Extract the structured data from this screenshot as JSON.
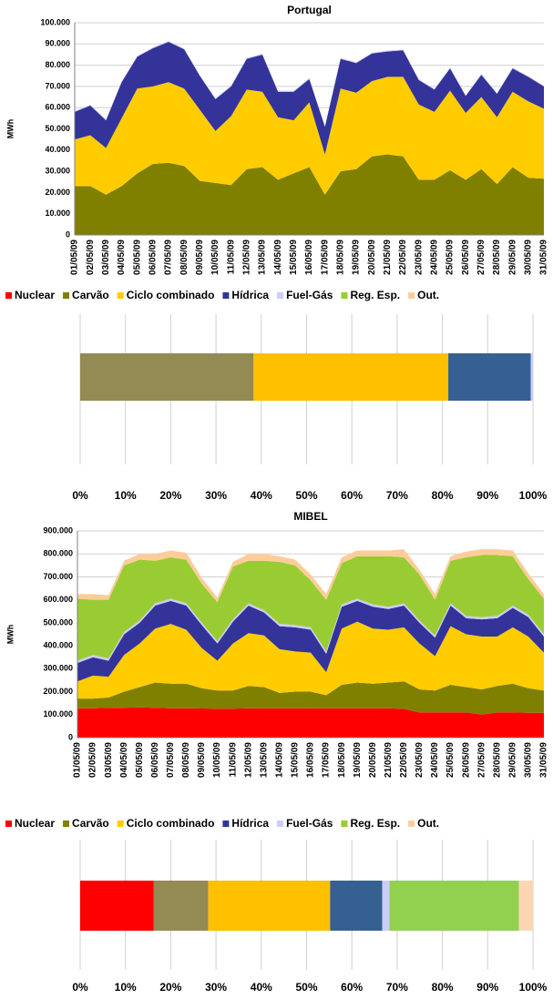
{
  "chart_data": [
    {
      "type": "area",
      "stacked": true,
      "title": "Portugal",
      "ylabel": "MWh",
      "categories": [
        "01/05/09",
        "02/05/09",
        "03/05/09",
        "04/05/09",
        "05/05/09",
        "06/05/09",
        "07/05/09",
        "08/05/09",
        "09/05/09",
        "10/05/09",
        "11/05/09",
        "12/05/09",
        "13/05/09",
        "14/05/09",
        "15/05/09",
        "16/05/09",
        "17/05/09",
        "18/05/09",
        "19/05/09",
        "20/05/09",
        "21/05/09",
        "22/05/09",
        "23/05/09",
        "24/05/09",
        "25/05/09",
        "26/05/09",
        "27/05/09",
        "28/05/09",
        "29/05/09",
        "30/05/09",
        "31/05/09"
      ],
      "ylim": [
        0,
        100000
      ],
      "yticks": [
        0,
        {
          "value": 10000,
          "label": "10.000"
        },
        {
          "value": 20000,
          "label": "20.000"
        },
        {
          "value": 30000,
          "label": "30.000"
        },
        {
          "value": 40000,
          "label": "40.000"
        },
        {
          "value": 50000,
          "label": "50.000"
        },
        {
          "value": 60000,
          "label": "60.000"
        },
        {
          "value": 70000,
          "label": "70.000"
        },
        {
          "value": 80000,
          "label": "80.000"
        },
        {
          "value": 90000,
          "label": "90.000"
        },
        {
          "value": 100000,
          "label": "100.000"
        }
      ],
      "grid": true,
      "series": [
        {
          "name": "Nuclear",
          "color": "#ff0000",
          "values": [
            0,
            0,
            0,
            0,
            0,
            0,
            0,
            0,
            0,
            0,
            0,
            0,
            0,
            0,
            0,
            0,
            0,
            0,
            0,
            0,
            0,
            0,
            0,
            0,
            0,
            0,
            0,
            0,
            0,
            0,
            0
          ]
        },
        {
          "name": "Carvão",
          "color": "#808000",
          "values": [
            23000,
            23000,
            19000,
            23000,
            29000,
            33500,
            34000,
            32500,
            25500,
            24500,
            23500,
            31000,
            32000,
            26000,
            29000,
            32000,
            19000,
            30000,
            31000,
            37000,
            38000,
            37000,
            26000,
            26000,
            30500,
            26000,
            31000,
            24000,
            32000,
            27000,
            26500
          ]
        },
        {
          "name": "Ciclo combinado",
          "color": "#ffcc00",
          "values": [
            22000,
            24000,
            22000,
            32000,
            40000,
            36500,
            38000,
            36500,
            33500,
            24500,
            32500,
            37500,
            35500,
            29500,
            25000,
            30500,
            19000,
            39000,
            36000,
            35500,
            36500,
            37500,
            35500,
            32000,
            37500,
            31500,
            34000,
            31500,
            35500,
            36000,
            33000
          ]
        },
        {
          "name": "Hídrica",
          "color": "#333399",
          "values": [
            13000,
            14000,
            13000,
            17000,
            15000,
            18000,
            19000,
            18500,
            16000,
            15000,
            14000,
            14500,
            17500,
            12000,
            13500,
            11000,
            13000,
            14000,
            14000,
            13000,
            12000,
            12500,
            11500,
            10500,
            10500,
            8000,
            10500,
            11000,
            11000,
            11500,
            10500
          ]
        },
        {
          "name": "Fuel-Gás",
          "color": "#ccccff",
          "values": [
            400,
            400,
            400,
            400,
            400,
            400,
            400,
            400,
            400,
            400,
            400,
            400,
            400,
            400,
            400,
            400,
            400,
            400,
            400,
            400,
            400,
            400,
            400,
            400,
            400,
            400,
            400,
            400,
            400,
            400,
            400
          ]
        },
        {
          "name": "Reg. Esp.",
          "color": "#99cc33",
          "values": [
            0,
            0,
            0,
            0,
            0,
            0,
            0,
            0,
            0,
            0,
            0,
            0,
            0,
            0,
            0,
            0,
            0,
            0,
            0,
            0,
            0,
            0,
            0,
            0,
            0,
            0,
            0,
            0,
            0,
            0,
            0
          ]
        },
        {
          "name": "Out.",
          "color": "#ffcc99",
          "values": [
            0,
            0,
            0,
            0,
            0,
            0,
            0,
            0,
            0,
            0,
            0,
            0,
            0,
            0,
            0,
            0,
            0,
            0,
            0,
            0,
            0,
            0,
            0,
            0,
            0,
            0,
            0,
            0,
            0,
            0,
            0
          ]
        }
      ]
    },
    {
      "type": "stacked-bar-100",
      "categories": [
        null
      ],
      "xlim": [
        0,
        100
      ],
      "xticks": [
        {
          "value": 0,
          "label": "0%"
        },
        {
          "value": 10,
          "label": "10%"
        },
        {
          "value": 20,
          "label": "20%"
        },
        {
          "value": 30,
          "label": "30%"
        },
        {
          "value": 40,
          "label": "40%"
        },
        {
          "value": 50,
          "label": "50%"
        },
        {
          "value": 60,
          "label": "60%"
        },
        {
          "value": 70,
          "label": "70%"
        },
        {
          "value": 80,
          "label": "80%"
        },
        {
          "value": 90,
          "label": "90%"
        },
        {
          "value": 100,
          "label": "100%"
        }
      ],
      "grid": true,
      "series": [
        {
          "color": "#ff0000",
          "values": [
            0
          ]
        },
        {
          "color": "#948a54",
          "values": [
            38.3
          ]
        },
        {
          "color": "#ffc000",
          "values": [
            43
          ]
        },
        {
          "color": "#366092",
          "values": [
            18.2
          ]
        },
        {
          "color": "#ccccff",
          "values": [
            0.5
          ]
        },
        {
          "color": "#92d050",
          "values": [
            0
          ]
        },
        {
          "color": "#fcd5b4",
          "values": [
            0
          ]
        }
      ]
    },
    {
      "type": "area",
      "stacked": true,
      "title": "MIBEL",
      "ylabel": "MWh",
      "categories": [
        "01/05/09",
        "02/05/09",
        "03/05/09",
        "04/05/09",
        "05/05/09",
        "06/05/09",
        "07/05/09",
        "08/05/09",
        "09/05/09",
        "10/05/09",
        "11/05/09",
        "12/05/09",
        "13/05/09",
        "14/05/09",
        "15/05/09",
        "16/05/09",
        "17/05/09",
        "18/05/09",
        "19/05/09",
        "20/05/09",
        "21/05/09",
        "22/05/09",
        "23/05/09",
        "24/05/09",
        "25/05/09",
        "26/05/09",
        "27/05/09",
        "28/05/09",
        "29/05/09",
        "30/05/09",
        "31/05/09"
      ],
      "ylim": [
        0,
        900000
      ],
      "yticks": [
        0,
        {
          "value": 100000,
          "label": "100.000"
        },
        {
          "value": 200000,
          "label": "200.000"
        },
        {
          "value": 300000,
          "label": "300.000"
        },
        {
          "value": 400000,
          "label": "400.000"
        },
        {
          "value": 500000,
          "label": "500.000"
        },
        {
          "value": 600000,
          "label": "600.000"
        },
        {
          "value": 700000,
          "label": "700.000"
        },
        {
          "value": 800000,
          "label": "800.000"
        },
        {
          "value": 900000,
          "label": "900.000"
        }
      ],
      "grid": true,
      "series": [
        {
          "name": "Nuclear",
          "color": "#ff0000",
          "values": [
            128000,
            128000,
            130000,
            130000,
            132000,
            130000,
            128000,
            128000,
            127000,
            126000,
            126000,
            128000,
            128000,
            128000,
            128000,
            128000,
            128000,
            128000,
            128000,
            128000,
            128000,
            125000,
            110000,
            110000,
            110000,
            110000,
            100000,
            110000,
            110000,
            108000,
            108000
          ]
        },
        {
          "name": "Carvão",
          "color": "#808000",
          "values": [
            42000,
            42000,
            45000,
            70000,
            88000,
            110000,
            107000,
            107000,
            88000,
            79000,
            79000,
            97000,
            92000,
            67000,
            72000,
            72000,
            57000,
            102000,
            112000,
            107000,
            112000,
            120000,
            100000,
            95000,
            120000,
            110000,
            110000,
            115000,
            125000,
            107000,
            97000
          ]
        },
        {
          "name": "Ciclo combinado",
          "color": "#ffcc00",
          "values": [
            75000,
            100000,
            90000,
            160000,
            190000,
            235000,
            260000,
            235000,
            175000,
            130000,
            205000,
            230000,
            225000,
            190000,
            175000,
            170000,
            100000,
            245000,
            265000,
            240000,
            230000,
            235000,
            200000,
            150000,
            255000,
            230000,
            230000,
            215000,
            245000,
            225000,
            165000
          ]
        },
        {
          "name": "Hídrica",
          "color": "#333399",
          "values": [
            80000,
            80000,
            70000,
            90000,
            90000,
            100000,
            100000,
            105000,
            100000,
            75000,
            95000,
            120000,
            100000,
            100000,
            105000,
            100000,
            80000,
            95000,
            90000,
            95000,
            90000,
            95000,
            90000,
            80000,
            90000,
            70000,
            75000,
            80000,
            85000,
            85000,
            70000
          ]
        },
        {
          "name": "Fuel-Gás",
          "color": "#ccccff",
          "values": [
            10000,
            10000,
            10000,
            10000,
            10000,
            10000,
            10000,
            10000,
            10000,
            10000,
            10000,
            10000,
            10000,
            10000,
            10000,
            10000,
            10000,
            10000,
            10000,
            10000,
            10000,
            10000,
            10000,
            10000,
            10000,
            10000,
            10000,
            10000,
            10000,
            10000,
            10000
          ]
        },
        {
          "name": "Reg. Esp.",
          "color": "#99cc33",
          "values": [
            270000,
            240000,
            255000,
            290000,
            265000,
            185000,
            180000,
            190000,
            170000,
            170000,
            230000,
            185000,
            215000,
            270000,
            260000,
            205000,
            225000,
            180000,
            185000,
            210000,
            220000,
            200000,
            200000,
            155000,
            185000,
            255000,
            270000,
            265000,
            215000,
            155000,
            155000
          ]
        },
        {
          "name": "Out.",
          "color": "#ffcc99",
          "values": [
            20000,
            25000,
            20000,
            20000,
            25000,
            30000,
            30000,
            30000,
            25000,
            20000,
            20000,
            30000,
            30000,
            25000,
            25000,
            25000,
            25000,
            25000,
            25000,
            25000,
            25000,
            35000,
            20000,
            25000,
            20000,
            25000,
            25000,
            25000,
            25000,
            25000,
            20000
          ]
        }
      ]
    },
    {
      "type": "stacked-bar-100",
      "categories": [
        null
      ],
      "xlim": [
        0,
        100
      ],
      "xticks": [
        {
          "value": 0,
          "label": "0%"
        },
        {
          "value": 10,
          "label": "10%"
        },
        {
          "value": 20,
          "label": "20%"
        },
        {
          "value": 30,
          "label": "30%"
        },
        {
          "value": 40,
          "label": "40%"
        },
        {
          "value": 50,
          "label": "50%"
        },
        {
          "value": 60,
          "label": "60%"
        },
        {
          "value": 70,
          "label": "70%"
        },
        {
          "value": 80,
          "label": "80%"
        },
        {
          "value": 90,
          "label": "90%"
        },
        {
          "value": 100,
          "label": "100%"
        }
      ],
      "grid": true,
      "series": [
        {
          "color": "#ff0000",
          "values": [
            16.2
          ]
        },
        {
          "color": "#948a54",
          "values": [
            12.1
          ]
        },
        {
          "color": "#ffc000",
          "values": [
            26.9
          ]
        },
        {
          "color": "#366092",
          "values": [
            11.5
          ]
        },
        {
          "color": "#ccccff",
          "values": [
            1.6
          ]
        },
        {
          "color": "#92d050",
          "values": [
            28.6
          ]
        },
        {
          "color": "#fcd5b4",
          "values": [
            3.1
          ]
        }
      ]
    }
  ]
}
